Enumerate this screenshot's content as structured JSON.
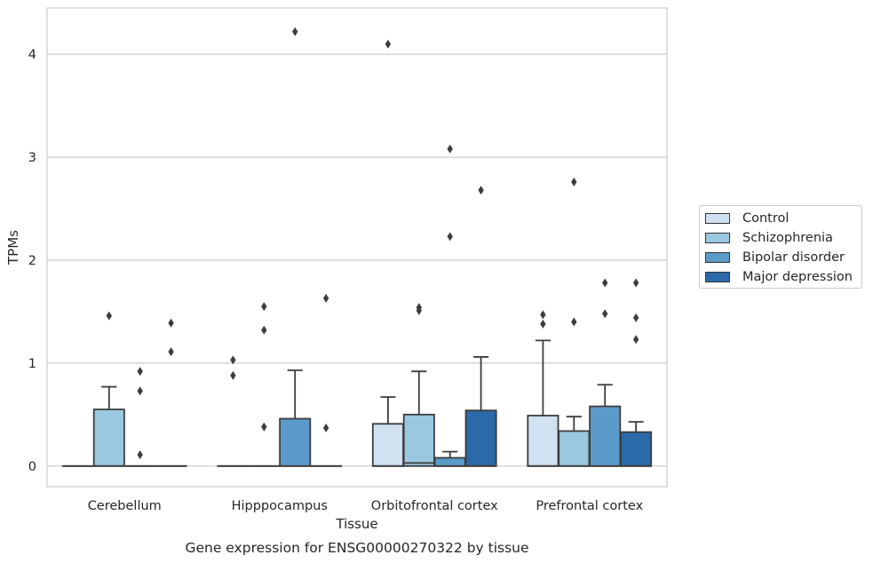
{
  "chart_data": {
    "type": "box",
    "title": "Gene expression for ENSG00000270322 by tissue",
    "xlabel": "Tissue",
    "ylabel": "TPMs",
    "ylim": [
      -0.2,
      4.45
    ],
    "yticks": [
      0,
      1,
      2,
      3,
      4
    ],
    "grid": true,
    "legend_position": "right",
    "categories": [
      "Cerebellum",
      "Hipppocampus",
      "Orbitofrontal cortex",
      "Prefrontal cortex"
    ],
    "series": [
      {
        "name": "Control",
        "color": "#d0e1f2",
        "boxes": [
          {
            "q1": 0,
            "median": 0,
            "q3": 0,
            "whislo": 0,
            "whishi": 0,
            "fliers": []
          },
          {
            "q1": 0,
            "median": 0,
            "q3": 0,
            "whislo": 0,
            "whishi": 0,
            "fliers": [
              0.88,
              1.03
            ]
          },
          {
            "q1": 0,
            "median": 0,
            "q3": 0.41,
            "whislo": 0,
            "whishi": 0.67,
            "fliers": [
              4.1
            ]
          },
          {
            "q1": 0,
            "median": 0,
            "q3": 0.49,
            "whislo": 0,
            "whishi": 1.22,
            "fliers": [
              1.38,
              1.47
            ]
          }
        ]
      },
      {
        "name": "Schizophrenia",
        "color": "#9ac8e0",
        "boxes": [
          {
            "q1": 0,
            "median": 0,
            "q3": 0.55,
            "whislo": 0,
            "whishi": 0.77,
            "fliers": [
              1.46
            ]
          },
          {
            "q1": 0,
            "median": 0,
            "q3": 0,
            "whislo": 0,
            "whishi": 0,
            "fliers": [
              0.38,
              1.32,
              1.55
            ]
          },
          {
            "q1": 0,
            "median": 0.03,
            "q3": 0.5,
            "whislo": 0,
            "whishi": 0.92,
            "fliers": [
              1.51,
              1.54
            ]
          },
          {
            "q1": 0,
            "median": 0,
            "q3": 0.34,
            "whislo": 0,
            "whishi": 0.48,
            "fliers": [
              1.4,
              2.76
            ]
          }
        ]
      },
      {
        "name": "Bipolar disorder",
        "color": "#5b9bc9",
        "boxes": [
          {
            "q1": 0,
            "median": 0,
            "q3": 0,
            "whislo": 0,
            "whishi": 0,
            "fliers": [
              0.11,
              0.73,
              0.92
            ]
          },
          {
            "q1": 0,
            "median": 0,
            "q3": 0.46,
            "whislo": 0,
            "whishi": 0.93,
            "fliers": [
              4.22
            ]
          },
          {
            "q1": 0,
            "median": 0,
            "q3": 0.08,
            "whislo": 0,
            "whishi": 0.14,
            "fliers": [
              2.23,
              3.08
            ]
          },
          {
            "q1": 0,
            "median": 0,
            "q3": 0.58,
            "whislo": 0,
            "whishi": 0.79,
            "fliers": [
              1.48,
              1.78
            ]
          }
        ]
      },
      {
        "name": "Major depression",
        "color": "#2b6aa8",
        "boxes": [
          {
            "q1": 0,
            "median": 0,
            "q3": 0,
            "whislo": 0,
            "whishi": 0,
            "fliers": [
              1.11,
              1.39
            ]
          },
          {
            "q1": 0,
            "median": 0,
            "q3": 0,
            "whislo": 0,
            "whishi": 0,
            "fliers": [
              0.37,
              1.63
            ]
          },
          {
            "q1": 0,
            "median": 0,
            "q3": 0.54,
            "whislo": 0,
            "whishi": 1.06,
            "fliers": [
              2.68
            ]
          },
          {
            "q1": 0,
            "median": 0,
            "q3": 0.33,
            "whislo": 0,
            "whishi": 0.43,
            "fliers": [
              1.23,
              1.44,
              1.78
            ]
          }
        ]
      }
    ]
  }
}
